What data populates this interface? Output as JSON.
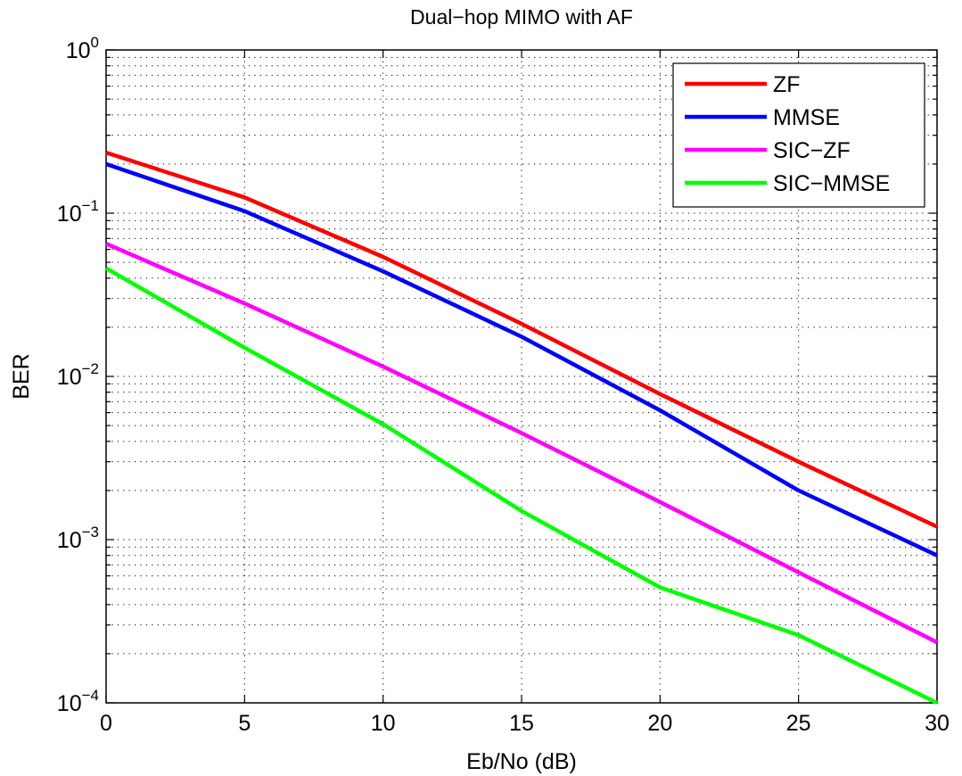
{
  "chart_data": {
    "type": "line",
    "title": "Dual−hop MIMO with AF",
    "xlabel": "Eb/No (dB)",
    "ylabel": "BER",
    "xlim": [
      0,
      30
    ],
    "ylim": [
      0.0001,
      1
    ],
    "yscale": "log",
    "grid": true,
    "legend_position": "top-right",
    "x": [
      0,
      5,
      10,
      15,
      20,
      25,
      30
    ],
    "x_tick_labels": [
      "0",
      "5",
      "10",
      "15",
      "20",
      "25",
      "30"
    ],
    "y_tick_labels": [
      {
        "base": "10",
        "exp": "0"
      },
      {
        "base": "10",
        "exp": "−1"
      },
      {
        "base": "10",
        "exp": "−2"
      },
      {
        "base": "10",
        "exp": "−3"
      },
      {
        "base": "10",
        "exp": "−4"
      }
    ],
    "series": [
      {
        "name": "ZF",
        "color": "#ff0000",
        "values": [
          0.235,
          0.125,
          0.054,
          0.021,
          0.0078,
          0.003,
          0.0012
        ]
      },
      {
        "name": "MMSE",
        "color": "#0000ff",
        "values": [
          0.2,
          0.103,
          0.044,
          0.0175,
          0.0062,
          0.002,
          0.0008
        ]
      },
      {
        "name": "SIC−ZF",
        "color": "#ff00ff",
        "values": [
          0.065,
          0.028,
          0.0115,
          0.0045,
          0.0017,
          0.00063,
          0.000235
        ]
      },
      {
        "name": "SIC−MMSE",
        "color": "#00ff00",
        "values": [
          0.046,
          0.015,
          0.0051,
          0.0015,
          0.00051,
          0.00026,
          0.0001
        ]
      }
    ]
  }
}
